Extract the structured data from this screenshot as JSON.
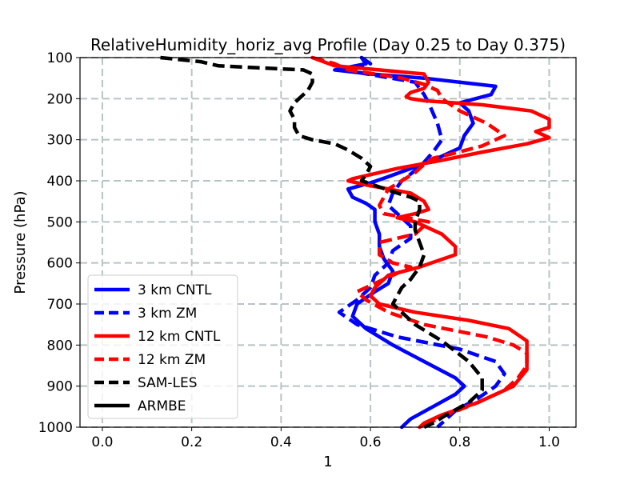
{
  "chart_data": {
    "type": "line",
    "title": "RelativeHumidity_horiz_avg Profile (Day 0.25 to Day 0.375)",
    "xlabel": "1",
    "ylabel": "Pressure (hPa)",
    "xlim": [
      -0.05,
      1.06
    ],
    "ylim": [
      1000,
      100
    ],
    "y_inverted": true,
    "xticks": [
      0.0,
      0.2,
      0.4,
      0.6,
      0.8,
      1.0
    ],
    "xtick_labels": [
      "0.0",
      "0.2",
      "0.4",
      "0.6",
      "0.8",
      "1.0"
    ],
    "yticks": [
      100,
      200,
      300,
      400,
      500,
      600,
      700,
      800,
      900,
      1000
    ],
    "ytick_labels": [
      "100",
      "200",
      "300",
      "400",
      "500",
      "600",
      "700",
      "800",
      "900",
      "1000"
    ],
    "grid": true,
    "legend_position": "lower-left",
    "series": [
      {
        "name": "3 km CNTL",
        "color": "#0000ff",
        "style": "solid",
        "points": [
          [
            0.58,
            100
          ],
          [
            0.59,
            115
          ],
          [
            0.52,
            130
          ],
          [
            0.6,
            140
          ],
          [
            0.72,
            150
          ],
          [
            0.88,
            170
          ],
          [
            0.87,
            190
          ],
          [
            0.8,
            210
          ],
          [
            0.82,
            230
          ],
          [
            0.83,
            260
          ],
          [
            0.81,
            290
          ],
          [
            0.8,
            320
          ],
          [
            0.75,
            345
          ],
          [
            0.69,
            370
          ],
          [
            0.64,
            390
          ],
          [
            0.6,
            405
          ],
          [
            0.55,
            420
          ],
          [
            0.56,
            440
          ],
          [
            0.59,
            455
          ],
          [
            0.61,
            470
          ],
          [
            0.61,
            500
          ],
          [
            0.62,
            530
          ],
          [
            0.62,
            560
          ],
          [
            0.63,
            590
          ],
          [
            0.65,
            620
          ],
          [
            0.64,
            650
          ],
          [
            0.61,
            670
          ],
          [
            0.57,
            700
          ],
          [
            0.56,
            730
          ],
          [
            0.59,
            760
          ],
          [
            0.65,
            800
          ],
          [
            0.72,
            840
          ],
          [
            0.79,
            880
          ],
          [
            0.81,
            900
          ],
          [
            0.79,
            920
          ],
          [
            0.74,
            950
          ],
          [
            0.69,
            980
          ],
          [
            0.67,
            1000
          ]
        ]
      },
      {
        "name": "3 km ZM",
        "color": "#0000ff",
        "style": "dashed",
        "points": [
          [
            0.58,
            100
          ],
          [
            0.6,
            115
          ],
          [
            0.54,
            130
          ],
          [
            0.62,
            145
          ],
          [
            0.7,
            160
          ],
          [
            0.72,
            190
          ],
          [
            0.73,
            210
          ],
          [
            0.75,
            260
          ],
          [
            0.76,
            300
          ],
          [
            0.74,
            330
          ],
          [
            0.72,
            355
          ],
          [
            0.7,
            375
          ],
          [
            0.67,
            400
          ],
          [
            0.65,
            430
          ],
          [
            0.64,
            460
          ],
          [
            0.67,
            490
          ],
          [
            0.69,
            510
          ],
          [
            0.69,
            540
          ],
          [
            0.65,
            570
          ],
          [
            0.64,
            600
          ],
          [
            0.61,
            630
          ],
          [
            0.6,
            660
          ],
          [
            0.57,
            690
          ],
          [
            0.53,
            720
          ],
          [
            0.57,
            750
          ],
          [
            0.66,
            780
          ],
          [
            0.8,
            810
          ],
          [
            0.88,
            840
          ],
          [
            0.9,
            870
          ],
          [
            0.88,
            900
          ],
          [
            0.84,
            930
          ],
          [
            0.79,
            960
          ],
          [
            0.76,
            990
          ],
          [
            0.75,
            1000
          ]
        ]
      },
      {
        "name": "12 km CNTL",
        "color": "#ff0000",
        "style": "solid",
        "points": [
          [
            0.47,
            100
          ],
          [
            0.52,
            120
          ],
          [
            0.72,
            140
          ],
          [
            0.73,
            160
          ],
          [
            0.72,
            175
          ],
          [
            0.69,
            185
          ],
          [
            0.68,
            195
          ],
          [
            0.69,
            200
          ],
          [
            0.72,
            205
          ],
          [
            0.85,
            215
          ],
          [
            0.96,
            230
          ],
          [
            1.0,
            250
          ],
          [
            1.0,
            270
          ],
          [
            0.97,
            280
          ],
          [
            1.0,
            295
          ],
          [
            0.95,
            310
          ],
          [
            0.85,
            330
          ],
          [
            0.76,
            350
          ],
          [
            0.66,
            370
          ],
          [
            0.56,
            395
          ],
          [
            0.55,
            400
          ],
          [
            0.59,
            410
          ],
          [
            0.69,
            430
          ],
          [
            0.72,
            450
          ],
          [
            0.73,
            470
          ],
          [
            0.7,
            480
          ],
          [
            0.66,
            490
          ],
          [
            0.7,
            500
          ],
          [
            0.76,
            530
          ],
          [
            0.79,
            560
          ],
          [
            0.79,
            580
          ],
          [
            0.71,
            610
          ],
          [
            0.64,
            630
          ],
          [
            0.61,
            660
          ],
          [
            0.6,
            680
          ],
          [
            0.62,
            700
          ],
          [
            0.7,
            720
          ],
          [
            0.82,
            740
          ],
          [
            0.91,
            760
          ],
          [
            0.95,
            790
          ],
          [
            0.95,
            820
          ],
          [
            0.95,
            860
          ],
          [
            0.92,
            900
          ],
          [
            0.84,
            940
          ],
          [
            0.76,
            970
          ],
          [
            0.72,
            990
          ],
          [
            0.71,
            1000
          ]
        ]
      },
      {
        "name": "12 km ZM",
        "color": "#ff0000",
        "style": "dashed",
        "points": [
          [
            0.47,
            100
          ],
          [
            0.52,
            115
          ],
          [
            0.55,
            130
          ],
          [
            0.67,
            150
          ],
          [
            0.72,
            165
          ],
          [
            0.75,
            180
          ],
          [
            0.76,
            200
          ],
          [
            0.8,
            230
          ],
          [
            0.86,
            260
          ],
          [
            0.9,
            290
          ],
          [
            0.85,
            315
          ],
          [
            0.78,
            335
          ],
          [
            0.74,
            345
          ],
          [
            0.72,
            360
          ],
          [
            0.7,
            380
          ],
          [
            0.67,
            400
          ],
          [
            0.64,
            420
          ],
          [
            0.63,
            440
          ],
          [
            0.62,
            460
          ],
          [
            0.63,
            480
          ],
          [
            0.73,
            500
          ],
          [
            0.7,
            530
          ],
          [
            0.62,
            550
          ],
          [
            0.62,
            580
          ],
          [
            0.65,
            600
          ],
          [
            0.69,
            610
          ],
          [
            0.65,
            630
          ],
          [
            0.61,
            650
          ],
          [
            0.57,
            670
          ],
          [
            0.59,
            690
          ],
          [
            0.64,
            720
          ],
          [
            0.72,
            750
          ],
          [
            0.86,
            780
          ],
          [
            0.92,
            800
          ],
          [
            0.95,
            820
          ],
          [
            0.95,
            850
          ],
          [
            0.93,
            880
          ],
          [
            0.9,
            910
          ],
          [
            0.84,
            940
          ],
          [
            0.77,
            970
          ],
          [
            0.73,
            990
          ],
          [
            0.72,
            1000
          ]
        ]
      },
      {
        "name": "SAM-LES",
        "color": "#000000",
        "style": "dashed",
        "points": [
          [
            0.13,
            100
          ],
          [
            0.22,
            110
          ],
          [
            0.26,
            120
          ],
          [
            0.35,
            125
          ],
          [
            0.45,
            130
          ],
          [
            0.47,
            140
          ],
          [
            0.47,
            160
          ],
          [
            0.46,
            180
          ],
          [
            0.43,
            210
          ],
          [
            0.42,
            230
          ],
          [
            0.43,
            250
          ],
          [
            0.43,
            270
          ],
          [
            0.44,
            290
          ],
          [
            0.47,
            300
          ],
          [
            0.52,
            310
          ],
          [
            0.55,
            325
          ],
          [
            0.58,
            345
          ],
          [
            0.6,
            365
          ],
          [
            0.59,
            385
          ],
          [
            0.58,
            400
          ],
          [
            0.62,
            415
          ],
          [
            0.66,
            430
          ],
          [
            0.69,
            440
          ],
          [
            0.71,
            450
          ],
          [
            0.71,
            470
          ],
          [
            0.7,
            500
          ],
          [
            0.7,
            520
          ],
          [
            0.71,
            550
          ],
          [
            0.72,
            580
          ],
          [
            0.71,
            610
          ],
          [
            0.69,
            640
          ],
          [
            0.67,
            660
          ],
          [
            0.66,
            680
          ],
          [
            0.65,
            700
          ],
          [
            0.67,
            720
          ],
          [
            0.7,
            750
          ],
          [
            0.76,
            790
          ],
          [
            0.82,
            840
          ],
          [
            0.85,
            880
          ],
          [
            0.85,
            910
          ],
          [
            0.82,
            940
          ],
          [
            0.77,
            970
          ],
          [
            0.74,
            990
          ],
          [
            0.72,
            1000
          ]
        ]
      },
      {
        "name": "ARMBE",
        "color": "#000000",
        "style": "solid",
        "points": []
      }
    ]
  }
}
